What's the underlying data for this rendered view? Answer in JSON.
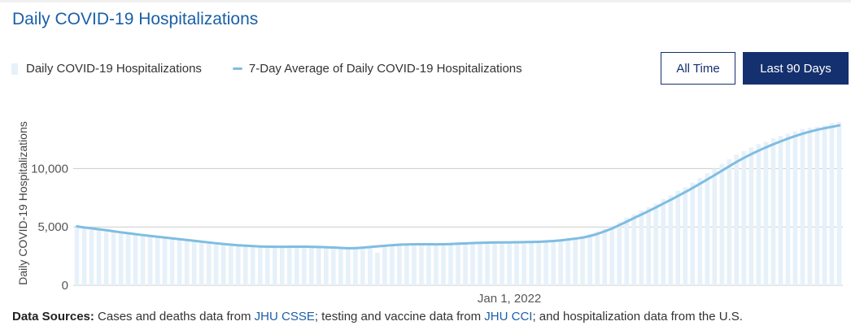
{
  "title": "Daily COVID-19 Hospitalizations",
  "legend": {
    "bars": "Daily COVID-19 Hospitalizations",
    "line": "7-Day Average of Daily COVID-19 Hospitalizations"
  },
  "buttons": {
    "all_time": "All Time",
    "last_90": "Last 90 Days"
  },
  "sources": {
    "label": "Data Sources:",
    "t1": " Cases and deaths data from ",
    "l1": "JHU CSSE",
    "t2": "; testing and vaccine data from ",
    "l2": "JHU CCI",
    "t3": "; and hospitalization data from the U.S."
  },
  "colors": {
    "bar": "#e6f1fa",
    "line": "#7fbde2",
    "grid": "#cccccc",
    "title": "#1a5fa8",
    "button": "#14306e"
  },
  "chart_data": {
    "type": "bar",
    "title": "Daily COVID-19 Hospitalizations",
    "ylabel": "Daily COVID-19 Hospitalizations",
    "ylim": [
      0,
      14000
    ],
    "yticks": [
      0,
      5000,
      10000
    ],
    "ytick_labels": [
      "0",
      "5,000",
      "10,000"
    ],
    "x_tick_label": "Jan 1, 2022",
    "x_tick_index": 59,
    "grid": true,
    "legend_position": "top-left",
    "series": [
      {
        "name": "Daily COVID-19 Hospitalizations",
        "type": "bar",
        "values": [
          5100,
          5000,
          4900,
          4850,
          4750,
          4650,
          4550,
          4500,
          4400,
          4300,
          4250,
          4150,
          4100,
          4000,
          3900,
          3850,
          3750,
          3700,
          3600,
          3550,
          3450,
          3400,
          3350,
          3350,
          3300,
          3300,
          3280,
          3300,
          3300,
          3300,
          3320,
          3300,
          3300,
          3280,
          3250,
          3250,
          3200,
          3100,
          3150,
          3250,
          3300,
          2800,
          3400,
          3500,
          3500,
          3550,
          3600,
          3550,
          3550,
          3500,
          3500,
          3550,
          3600,
          3600,
          3650,
          3700,
          3650,
          3700,
          3650,
          3700,
          3700,
          3700,
          3700,
          3750,
          3800,
          3850,
          3900,
          4000,
          4100,
          4200,
          4400,
          4600,
          4850,
          5100,
          5400,
          5800,
          6100,
          6400,
          6700,
          7000,
          7400,
          7700,
          8100,
          8400,
          8800,
          9200,
          9600,
          10000,
          10400,
          10800,
          11200,
          11500,
          11800,
          12100,
          12300,
          12600,
          12800,
          13000,
          13200,
          13400,
          13500,
          13600,
          13700,
          13900,
          14000
        ]
      },
      {
        "name": "7-Day Average of Daily COVID-19 Hospitalizations",
        "type": "line",
        "values": [
          5050,
          4950,
          4880,
          4800,
          4720,
          4630,
          4540,
          4460,
          4380,
          4300,
          4230,
          4160,
          4090,
          4020,
          3950,
          3880,
          3810,
          3740,
          3670,
          3600,
          3540,
          3480,
          3430,
          3390,
          3360,
          3330,
          3310,
          3300,
          3300,
          3300,
          3310,
          3310,
          3300,
          3280,
          3260,
          3240,
          3210,
          3170,
          3180,
          3230,
          3280,
          3330,
          3390,
          3440,
          3480,
          3500,
          3520,
          3520,
          3520,
          3510,
          3520,
          3540,
          3570,
          3590,
          3620,
          3640,
          3660,
          3670,
          3670,
          3680,
          3690,
          3700,
          3710,
          3730,
          3760,
          3800,
          3850,
          3920,
          4000,
          4090,
          4220,
          4400,
          4620,
          4870,
          5150,
          5450,
          5760,
          6060,
          6360,
          6670,
          7000,
          7320,
          7650,
          7990,
          8340,
          8700,
          9070,
          9440,
          9820,
          10200,
          10580,
          10920,
          11240,
          11540,
          11820,
          12080,
          12330,
          12570,
          12790,
          12990,
          13170,
          13330,
          13460,
          13580,
          13700
        ]
      }
    ]
  }
}
